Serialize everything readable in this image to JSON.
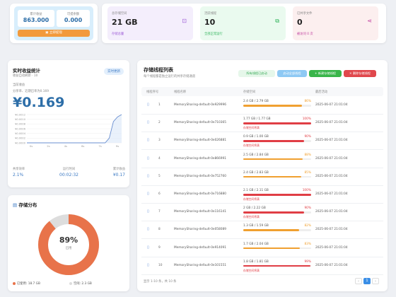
{
  "earnings": {
    "today_label": "累计收益",
    "today_value": "863.000",
    "avail_label": "可提余额",
    "avail_value": "0.000",
    "withdraw_label": "立即提现",
    "withdraw_icon": "wallet-icon"
  },
  "stats": [
    {
      "label": "总存储空间",
      "value": "21 GB",
      "sub": "存储总量",
      "icon": "archive-icon",
      "bg": "#f4eefc",
      "accent": "#a060d8"
    },
    {
      "label": "活跃线程",
      "value": "10",
      "sub": "全部正常运行",
      "icon": "copy-icon",
      "bg": "#eafaef",
      "accent": "#2fb35a"
    },
    {
      "label": "已共享文件",
      "value": "0",
      "sub": "被访问 0 次",
      "icon": "share-icon",
      "bg": "#fcefef",
      "accent": "#c040a0"
    }
  ],
  "realtime": {
    "title": "实时收益统计",
    "subtitle": "收益自动刷新 · 10",
    "badge": "实时更新",
    "section_label": "当前收益",
    "rate_label": "分享率、近期已率为0.169",
    "amount": "¥0.169",
    "chart_data": {
      "type": "line",
      "series": [
        {
          "name": "",
          "values": [
            0,
            0,
            0,
            0,
            0,
            0,
            0,
            0,
            0,
            0,
            0,
            0,
            0,
            0,
            0,
            0,
            0,
            0,
            0,
            0,
            0.0002,
            0.0009,
            0.0011,
            0.0012
          ]
        }
      ],
      "y_ticks": [
        "¥0.0012",
        "¥0.0010",
        "¥0.0008",
        "¥0.0006",
        "¥0.0004",
        "¥0.0002",
        "¥0.0000"
      ],
      "x_ticks": [
        "0s",
        "2s",
        "4s",
        "6s",
        "7s",
        "9s"
      ],
      "ylim": [
        0,
        0.0012
      ]
    },
    "metrics": [
      {
        "label": "共享效率",
        "value": "2.1%"
      },
      {
        "label": "运行时间",
        "value": "00:02:32"
      },
      {
        "label": "累计收益",
        "value": "¥0.17"
      }
    ]
  },
  "distribution": {
    "title": "存储分布",
    "icon": "database-icon",
    "percent": "89%",
    "percent_label": "已用",
    "used_fraction": 0.89,
    "legend": [
      {
        "label": "已使用: 18.7 GB",
        "color": "#e8734a"
      },
      {
        "label": "空闲: 2.3 GB",
        "color": "#dddddd"
      }
    ]
  },
  "threads": {
    "title": "存储线程列表",
    "subtitle": "每个线程都是独立运行的共享存储通道",
    "actions": [
      {
        "label": "所有线程已启动",
        "bg": "#e6f7ea",
        "color": "#34a853"
      },
      {
        "label": "启动全部线程",
        "bg": "#8ec9f4",
        "color": "#ffffff"
      },
      {
        "label": "+ 新建存储线程",
        "bg": "#39b54a",
        "color": "#ffffff"
      },
      {
        "label": "✕ 删除存储线程",
        "bg": "#e0474c",
        "color": "#ffffff"
      }
    ],
    "columns": [
      "线程序号",
      "线程名称",
      "存储空间",
      "最后活动"
    ],
    "rows": [
      {
        "num": "1",
        "name": "MemorySharing-default-0e929996",
        "storage": "2.4 GB / 2.79 GB",
        "pct": "86%",
        "fill": 0.86,
        "color": "#f0a030",
        "warn": "",
        "time": "2025-06-07 21:01:04"
      },
      {
        "num": "2",
        "name": "MemorySharing-default-0e710365",
        "storage": "1.77 GB / 1.77 GB",
        "pct": "100%",
        "fill": 1,
        "color": "#e03e45",
        "warn": "存储空间将满",
        "time": "2025-06-07 21:01:04"
      },
      {
        "num": "3",
        "name": "MemorySharing-default-0e026881",
        "storage": "0.9 GB / 1.00 GB",
        "pct": "90%",
        "fill": 0.9,
        "color": "#e03e45",
        "warn": "存储空间将满",
        "time": "2025-06-07 21:01:04"
      },
      {
        "num": "4",
        "name": "MemorySharing-default-0e866991",
        "storage": "2.5 GB / 2.84 GB",
        "pct": "88%",
        "fill": 0.88,
        "color": "#f0a030",
        "warn": "",
        "time": "2025-06-07 21:01:04"
      },
      {
        "num": "5",
        "name": "MemorySharing-default-0e752760",
        "storage": "2.4 GB / 2.83 GB",
        "pct": "85%",
        "fill": 0.85,
        "color": "#f0a030",
        "warn": "",
        "time": "2025-06-07 21:01:04"
      },
      {
        "num": "6",
        "name": "MemorySharing-default-0e716880",
        "storage": "2.1 GB / 2.11 GB",
        "pct": "100%",
        "fill": 1,
        "color": "#e03e45",
        "warn": "存储空间将满",
        "time": "2025-06-07 21:01:04"
      },
      {
        "num": "7",
        "name": "MemorySharing-default-0e116141",
        "storage": "2 GB / 2.22 GB",
        "pct": "90%",
        "fill": 0.9,
        "color": "#e03e45",
        "warn": "存储空间将满",
        "time": "2025-06-07 21:01:04"
      },
      {
        "num": "8",
        "name": "MemorySharing-default-0e058089",
        "storage": "1.3 GB / 1.59 GB",
        "pct": "82%",
        "fill": 0.82,
        "color": "#f0a030",
        "warn": "",
        "time": "2025-06-07 21:01:04"
      },
      {
        "num": "9",
        "name": "MemorySharing-default-0e914091",
        "storage": "1.7 GB / 2.04 GB",
        "pct": "83%",
        "fill": 0.83,
        "color": "#f0a030",
        "warn": "",
        "time": "2025-06-07 21:01:04"
      },
      {
        "num": "10",
        "name": "MemorySharing-default-0e101551",
        "storage": "1.8 GB / 1.81 GB",
        "pct": "99%",
        "fill": 0.99,
        "color": "#e03e45",
        "warn": "存储空间将满",
        "time": "2025-06-07 21:01:04"
      }
    ],
    "footer": "显示 1-10 条，共 10 条",
    "pages": [
      "‹",
      "1",
      "›"
    ],
    "row_icon": "trash-icon"
  }
}
